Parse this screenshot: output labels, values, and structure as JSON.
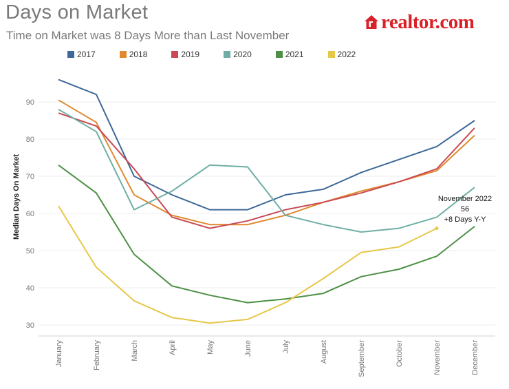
{
  "header": {
    "title": "Days on Market",
    "subtitle": "Time on Market was 8 Days More than Last November",
    "logo_text": "realtor.com"
  },
  "colors": {
    "2017": "#3e6897",
    "2018": "#e0892f",
    "2019": "#c94a52",
    "2020": "#6eaea4",
    "2021": "#4d8f45",
    "2022": "#e6c849",
    "brand": "#d92228"
  },
  "annotation": {
    "line1": "November 2022",
    "line2": "56",
    "line3": "+8 Days Y-Y"
  },
  "chart_data": {
    "type": "line",
    "title": "Days on Market",
    "subtitle": "Time on Market was 8 Days More than Last November",
    "xlabel": "",
    "ylabel": "Median Days On Market",
    "ylim": [
      28,
      98
    ],
    "yticks": [
      30,
      40,
      50,
      60,
      70,
      80,
      90
    ],
    "grid": true,
    "legend": "top",
    "categories": [
      "January",
      "February",
      "March",
      "April",
      "May",
      "June",
      "July",
      "August",
      "September",
      "October",
      "November",
      "December"
    ],
    "series": [
      {
        "name": "2017",
        "values": [
          96,
          92,
          70,
          65,
          61,
          61,
          65,
          66.5,
          71,
          74.5,
          78,
          85
        ]
      },
      {
        "name": "2018",
        "values": [
          90.5,
          84.5,
          65,
          59.5,
          57,
          57,
          59.5,
          63,
          66,
          68.5,
          71.5,
          81
        ]
      },
      {
        "name": "2019",
        "values": [
          87,
          83.5,
          72,
          59,
          56,
          58,
          61,
          63,
          65.5,
          68.5,
          72,
          83
        ]
      },
      {
        "name": "2020",
        "values": [
          88,
          82,
          61,
          66,
          73,
          72.5,
          59.5,
          57,
          55,
          56,
          59,
          67
        ]
      },
      {
        "name": "2021",
        "values": [
          73,
          65.5,
          49,
          40.5,
          38,
          36,
          37,
          38.5,
          43,
          45,
          48.5,
          56.5
        ]
      },
      {
        "name": "2022",
        "values": [
          62,
          45.5,
          36.5,
          32,
          30.5,
          31.5,
          36,
          42.5,
          49.5,
          51,
          56,
          null
        ]
      }
    ]
  }
}
